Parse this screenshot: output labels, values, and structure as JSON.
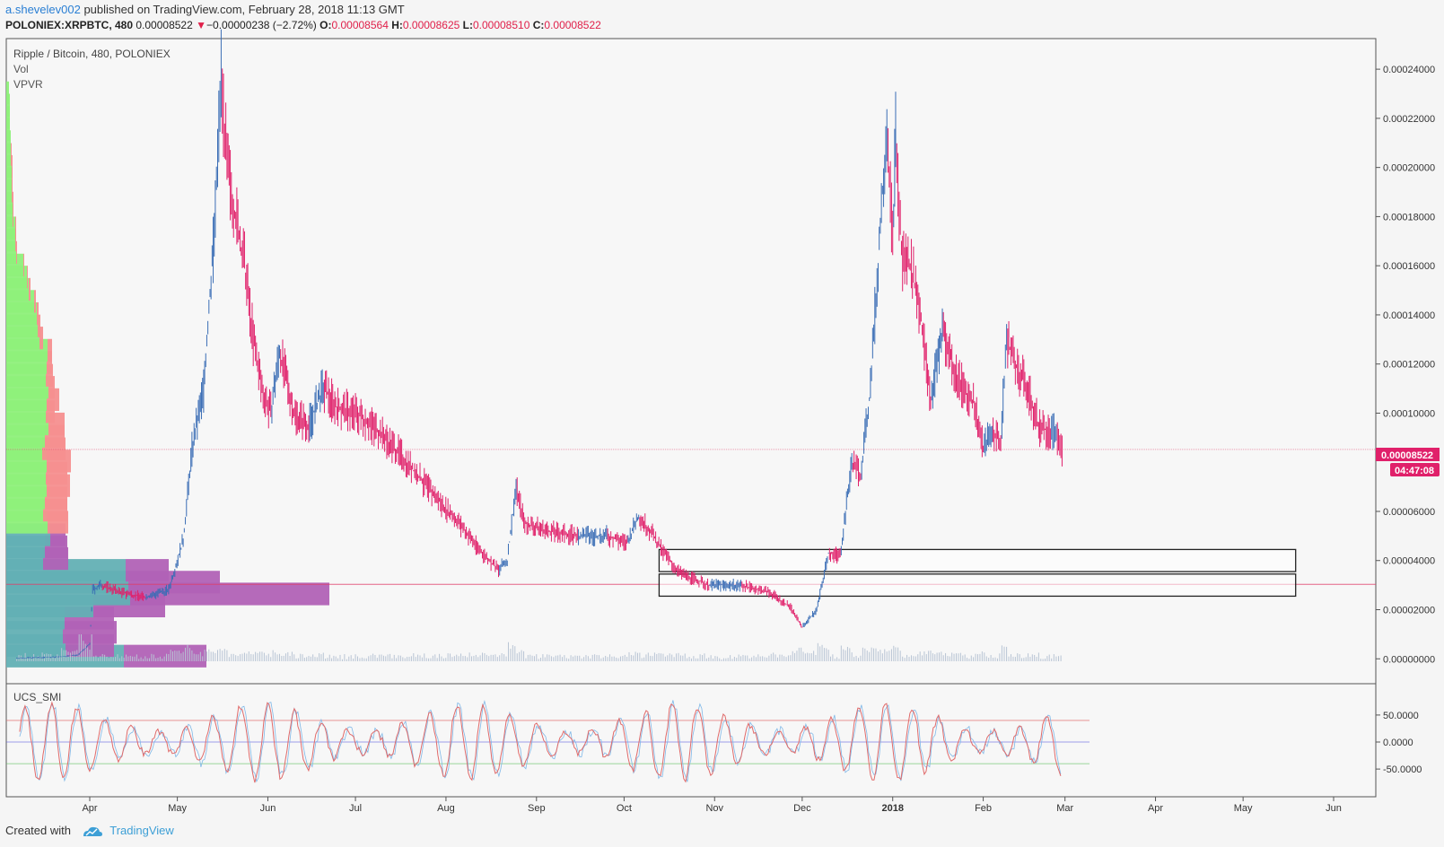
{
  "header": {
    "author": "a.shevelev002",
    "published_text": " published on TradingView.com, February 28, 2018 11:13 GMT",
    "symbol_line": "POLONIEX:XRPBTC, 480",
    "last_price": "0.00008522",
    "change_text": "−0.00000238 (−2.72%)",
    "o_label": "O:",
    "o_value": "0.00008564",
    "h_label": "H:",
    "h_value": "0.00008625",
    "l_label": "L:",
    "l_value": "0.00008510",
    "c_label": "C:",
    "c_value": "0.00008522"
  },
  "legend": {
    "main": "Ripple / Bitcoin, 480, POLONIEX",
    "vol": "Vol",
    "vpvr": "VPVR",
    "indicator": "UCS_SMI"
  },
  "price_badge": "0.00008522",
  "countdown_badge": "04:47:08",
  "footer": {
    "created_with": "Created with",
    "brand": "TradingView"
  },
  "colors": {
    "up": "#3a6db5",
    "down": "#e0206a",
    "price_line": "#e0406a",
    "vp_up": "#8ef07a",
    "vp_down": "#f58f8f",
    "va_up": "#63b0b4",
    "va_down": "#b162b6",
    "smi_line": "#e06a6a",
    "smi_signal": "#7fb8e8",
    "author_blue": "#2a7fd4"
  },
  "chart_data": {
    "type": "line",
    "title": "Ripple / Bitcoin, 480, POLONIEX",
    "x_axis": {
      "tick_labels": [
        "Apr",
        "May",
        "Jun",
        "Jul",
        "Aug",
        "Sep",
        "Oct",
        "Nov",
        "Dec",
        "2018",
        "Feb",
        "Mar",
        "Apr",
        "May",
        "Jun"
      ]
    },
    "y_axis": {
      "tick_labels": [
        "0.00000000",
        "0.00002000",
        "0.00004000",
        "0.00006000",
        "0.00010000",
        "0.00012000",
        "0.00014000",
        "0.00016000",
        "0.00018000",
        "0.00020000",
        "0.00022000",
        "0.00024000"
      ],
      "range": [
        -1e-06,
        0.000251
      ]
    },
    "grid": false,
    "price": {
      "x": [
        "2017-03-07",
        "2017-03-15",
        "2017-03-22",
        "2017-03-28",
        "2017-04-01",
        "2017-04-02",
        "2017-04-05",
        "2017-04-12",
        "2017-04-20",
        "2017-04-28",
        "2017-05-03",
        "2017-05-06",
        "2017-05-10",
        "2017-05-14",
        "2017-05-16",
        "2017-05-18",
        "2017-05-21",
        "2017-05-24",
        "2017-05-27",
        "2017-05-30",
        "2017-06-02",
        "2017-06-05",
        "2017-06-10",
        "2017-06-15",
        "2017-06-20",
        "2017-06-25",
        "2017-07-01",
        "2017-07-07",
        "2017-07-15",
        "2017-07-22",
        "2017-07-29",
        "2017-08-05",
        "2017-08-12",
        "2017-08-19",
        "2017-08-22",
        "2017-08-25",
        "2017-08-28",
        "2017-09-05",
        "2017-09-15",
        "2017-09-25",
        "2017-10-02",
        "2017-10-06",
        "2017-10-10",
        "2017-10-14",
        "2017-10-20",
        "2017-10-30",
        "2017-11-10",
        "2017-11-20",
        "2017-11-27",
        "2017-12-01",
        "2017-12-06",
        "2017-12-10",
        "2017-12-14",
        "2017-12-18",
        "2017-12-21",
        "2017-12-24",
        "2017-12-27",
        "2017-12-30",
        "2018-01-01",
        "2018-01-02",
        "2018-01-04",
        "2018-01-07",
        "2018-01-10",
        "2018-01-14",
        "2018-01-18",
        "2018-01-22",
        "2018-01-25",
        "2018-01-29",
        "2018-02-01",
        "2018-02-04",
        "2018-02-07",
        "2018-02-09",
        "2018-02-12",
        "2018-02-16",
        "2018-02-20",
        "2018-02-24",
        "2018-02-26",
        "2018-02-28"
      ],
      "close": [
        3e-07,
        5e-07,
        8e-07,
        1.6e-06,
        6e-06,
        2.8e-05,
        3e-05,
        2.7e-05,
        2.5e-05,
        2.8e-05,
        4.8e-05,
        8.5e-05,
        0.00011,
        0.00018,
        0.00024,
        0.0002,
        0.00018,
        0.00016,
        0.00013,
        0.00011,
        0.0001,
        0.000125,
        0.0001,
        9.5e-05,
        0.00011,
        0.000102,
        0.0001,
        9.5e-05,
        8.5e-05,
        7.5e-05,
        6.5e-05,
        5.6e-05,
        4.5e-05,
        3.6e-05,
        4e-05,
        7e-05,
        5.5e-05,
        5.2e-05,
        5e-05,
        5e-05,
        4.7e-05,
        5.8e-05,
        5.2e-05,
        4.4e-05,
        3.5e-05,
        3e-05,
        3e-05,
        2.7e-05,
        2.1e-05,
        1.3e-05,
        2e-05,
        4.3e-05,
        4.2e-05,
        8e-05,
        7.5e-05,
        0.000105,
        0.00016,
        0.00022,
        0.00017,
        0.000215,
        0.000165,
        0.00016,
        0.000145,
        0.000105,
        0.000135,
        0.000118,
        0.00011,
        0.000104,
        8.5e-05,
        9.3e-05,
        8.8e-05,
        0.00013,
        0.00012,
        0.00011,
        9.5e-05,
        9.2e-05,
        9.2e-05,
        8.522e-05
      ]
    },
    "volume_profile_vpvr": {
      "price_bin_mid": [
        1.1e-06,
        5.4e-06,
        1.08e-05,
        1.66e-05,
        2.15e-05,
        2.64e-05,
        3.12e-05,
        3.6e-05,
        4.08e-05,
        4.56e-05,
        5.05e-05,
        5.56e-05,
        6.05e-05,
        6.55e-05,
        7.05e-05,
        7.55e-05,
        8.05e-05,
        8.55e-05,
        9.06e-05,
        9.56e-05,
        0.0001006,
        0.0001055,
        0.0001105,
        0.0001154,
        0.0001206,
        0.0001256,
        0.0001306,
        0.0001355,
        0.0001405,
        0.0001455,
        0.0001504,
        0.0001554,
        0.0001603,
        0.0001654,
        0.0001705,
        0.0001754,
        0.0001805,
        0.0001855,
        0.0001904,
        0.0001954,
        0.0002004,
        0.0002053,
        0.0002105,
        0.0002155,
        0.0002204,
        0.0002254,
        0.0002304
      ],
      "up_volume": [
        131,
        66,
        63,
        65,
        97,
        138,
        136,
        133,
        41,
        43,
        49,
        46,
        41,
        43,
        45,
        44,
        45,
        40,
        43,
        47,
        44,
        45,
        47,
        44,
        45,
        46,
        37,
        35,
        34,
        31,
        25,
        23,
        19,
        11,
        10,
        10,
        7,
        7,
        6,
        6,
        6,
        5,
        5,
        4,
        4,
        4,
        3
      ],
      "down_volume": [
        92,
        54,
        60,
        55,
        80,
        222,
        102,
        48,
        28,
        25,
        17,
        23,
        27,
        25,
        26,
        24,
        27,
        26,
        22,
        18,
        10,
        14,
        7,
        8,
        6,
        5,
        4,
        3,
        2,
        2,
        2,
        1,
        1,
        1,
        1,
        1,
        1,
        1,
        1,
        1,
        1,
        1,
        0,
        0,
        0,
        0,
        0
      ]
    },
    "zones": [
      {
        "start": "2017-10-13",
        "end": "2018-05-19",
        "low": 3.55e-05,
        "high": 4.45e-05
      },
      {
        "start": "2017-10-13",
        "end": "2018-05-19",
        "low": 2.55e-05,
        "high": 3.45e-05
      }
    ],
    "horizontal_lines": [
      8.522e-05,
      3.03e-05
    ],
    "indicator": {
      "name": "UCS_SMI",
      "tick_labels": [
        "50.0000",
        "0.0000",
        "-50.0000"
      ],
      "range": [
        -88,
        98
      ],
      "levels": [
        40,
        0,
        -40
      ]
    }
  }
}
